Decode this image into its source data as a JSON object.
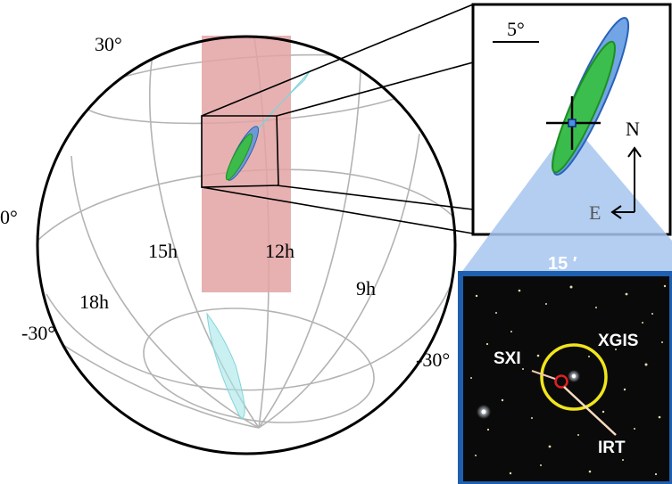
{
  "sky_map": {
    "dec_labels": {
      "plus30": "30°",
      "zero": "0°",
      "minus30_left": "-30°",
      "minus30_right": "-30°"
    },
    "ra_labels": {
      "h15": "15h",
      "h12": "12h",
      "h18": "18h",
      "h9": "9h"
    },
    "colors": {
      "globe_outline": "#000000",
      "grid": "#b3b3b3",
      "fov_band": "#e3a3a3",
      "skymap_cyan": "#a9e6ea",
      "error_blue": "#4f8ee0",
      "error_green": "#33c233"
    }
  },
  "zoom_panel": {
    "scale_label": "5°",
    "north_label": "N",
    "east_label": "E"
  },
  "image_panel": {
    "scale_label": "15 ′",
    "labels": {
      "xgis": "XGIS",
      "sxi": "SXI",
      "irt": "IRT"
    },
    "colors": {
      "frame": "#1f5fb0",
      "funnel": "#a7c6ee",
      "xgis_circle": "#f1e41c",
      "sxi_circle": "#e02020",
      "irt_arrow": "#f6dcc0",
      "sxi_arrow": "#f2c7b0",
      "sky": "#0a0a0a"
    }
  }
}
